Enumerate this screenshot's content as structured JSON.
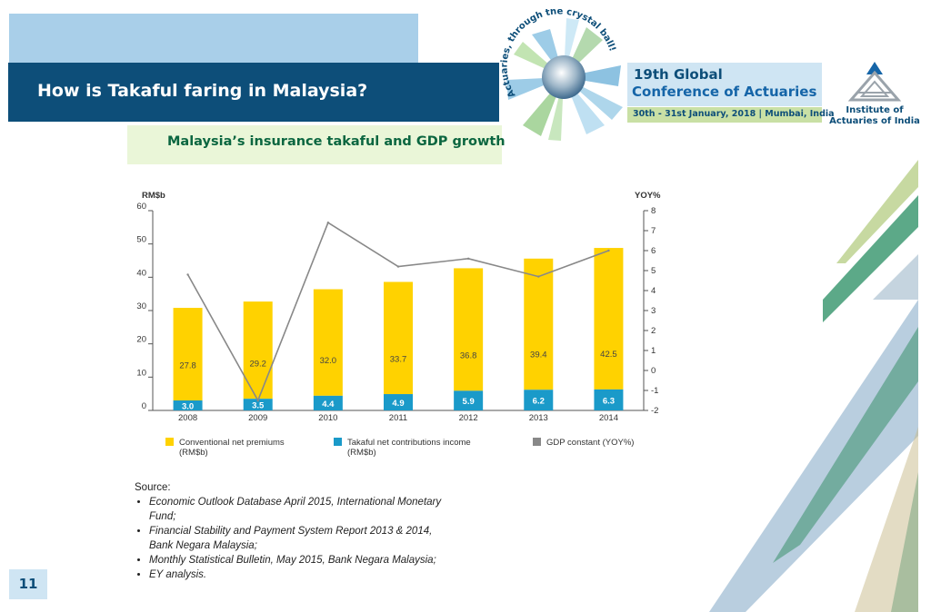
{
  "header": {
    "title": "How is Takaful faring in Malaysia?",
    "conference_line1": "19th Global",
    "conference_line2": "Conference of Actuaries",
    "conference_date": "30th - 31st January, 2018 | Mumbai, India",
    "logo_ring_text": "Actuaries, through the crystal ball!",
    "institute_line1": "Institute of",
    "institute_line2": "Actuaries of India"
  },
  "subtitle": "Malaysia’s insurance takaful and GDP growth",
  "chart_data": {
    "type": "bar",
    "categories": [
      "2008",
      "2009",
      "2010",
      "2011",
      "2012",
      "2013",
      "2014"
    ],
    "series": [
      {
        "name": "Conventional net premiums (RM$b)",
        "values": [
          27.8,
          29.2,
          32.0,
          33.7,
          36.8,
          39.4,
          42.5
        ],
        "value_labels": [
          "27.8",
          "29.2",
          "32.0",
          "33.7",
          "36.8",
          "39.4",
          "42.5"
        ],
        "color": "#ffd200",
        "axis": "left"
      },
      {
        "name": "Takaful net contributions income (RM$b)",
        "values": [
          3.0,
          3.5,
          4.4,
          4.9,
          5.9,
          6.2,
          6.3
        ],
        "value_labels": [
          "3.0",
          "3.5",
          "4.4",
          "4.9",
          "5.9",
          "6.2",
          "6.3"
        ],
        "color": "#1a9ac9",
        "axis": "left"
      },
      {
        "name": "GDP constant (YOY%)",
        "type": "line",
        "values": [
          4.8,
          -1.5,
          7.4,
          5.2,
          5.6,
          4.7,
          6.0
        ],
        "color": "#888888",
        "axis": "right"
      }
    ],
    "stacked": true,
    "ylabel": "RM$b",
    "y2label": "YOY%",
    "ylim": [
      0,
      60
    ],
    "y2lim": [
      -2,
      8
    ],
    "yticks": [
      "0",
      "10",
      "20",
      "30",
      "40",
      "50",
      "60"
    ],
    "y2ticks": [
      "-2",
      "-1",
      "0",
      "1",
      "2",
      "3",
      "4",
      "5",
      "6",
      "7",
      "8"
    ],
    "legend_labels": [
      [
        "Conventional net premiums",
        "(RM$b)"
      ],
      [
        "Takaful net contributions income",
        "(RM$b)"
      ],
      [
        "GDP constant (YOY%)"
      ]
    ],
    "legend": "bottom"
  },
  "source": {
    "heading": "Source:",
    "items": [
      "Economic Outlook Database April 2015, International Monetary Fund;",
      "Financial Stability and Payment System Report 2013 & 2014, Bank Negara Malaysia;",
      "Monthly Statistical Bulletin, May 2015, Bank Negara Malaysia;",
      "EY analysis."
    ]
  },
  "page_number": "11"
}
